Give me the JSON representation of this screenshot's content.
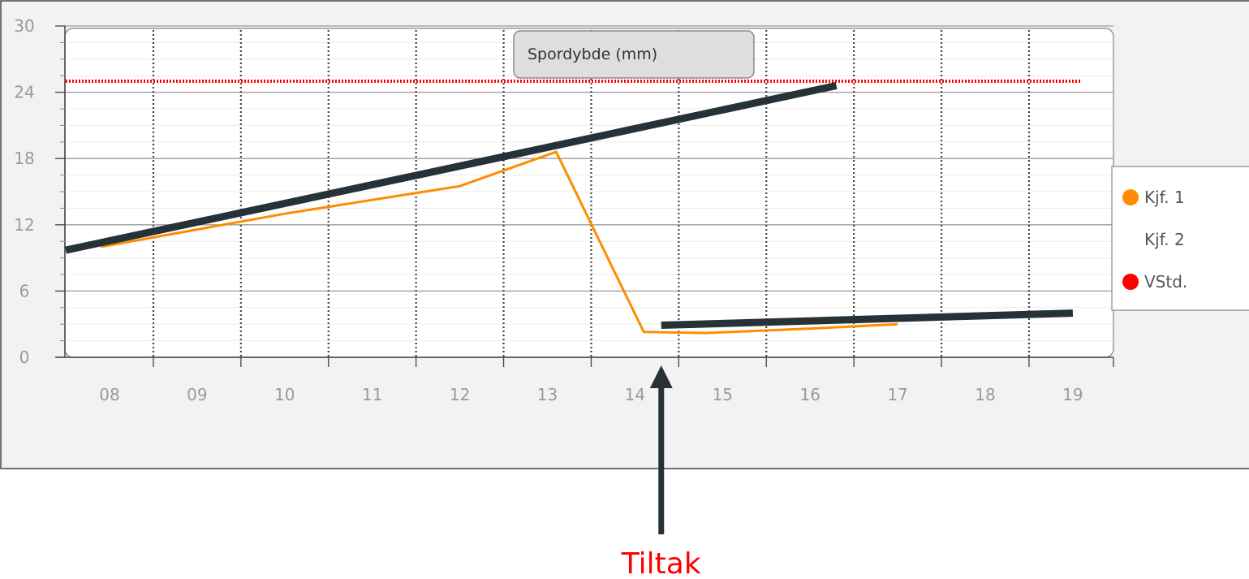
{
  "chart_data": {
    "type": "line",
    "title": "Spordybde (mm)",
    "x": [
      "08",
      "09",
      "10",
      "11",
      "12",
      "13",
      "14",
      "15",
      "16",
      "17",
      "18",
      "19"
    ],
    "ylim": [
      0,
      30
    ],
    "yticks": [
      "0",
      "6",
      "12",
      "18",
      "24",
      "30"
    ],
    "grid": true,
    "legend_position": "right",
    "series": [
      {
        "name": "Kjf. 1",
        "color": "#ff8c00",
        "points": [
          {
            "x": 7.9,
            "y": 10.0
          },
          {
            "x": 10.0,
            "y": 13.0
          },
          {
            "x": 12.0,
            "y": 15.5
          },
          {
            "x": 13.1,
            "y": 18.6
          },
          {
            "x": 14.1,
            "y": 2.3
          },
          {
            "x": 14.8,
            "y": 2.2
          },
          {
            "x": 16.0,
            "y": 2.6
          },
          {
            "x": 17.0,
            "y": 3.0
          }
        ]
      },
      {
        "name": "Kjf. 2",
        "color": "#ffffff",
        "points": []
      },
      {
        "name": "VStd.",
        "color": "#ff0000",
        "style": "dotted",
        "points": [
          {
            "x": 7.5,
            "y": 25.0
          },
          {
            "x": 19.1,
            "y": 25.0
          }
        ]
      }
    ],
    "annotations": {
      "trend_lines": [
        {
          "from": {
            "x": 7.5,
            "y": 9.7
          },
          "to": {
            "x": 16.3,
            "y": 24.6
          }
        },
        {
          "from": {
            "x": 14.3,
            "y": 2.9
          },
          "to": {
            "x": 19.0,
            "y": 4.0
          }
        }
      ],
      "arrow": {
        "at_x": 14.3,
        "label": "Tiltak",
        "label_color": "#ff0000"
      }
    }
  }
}
